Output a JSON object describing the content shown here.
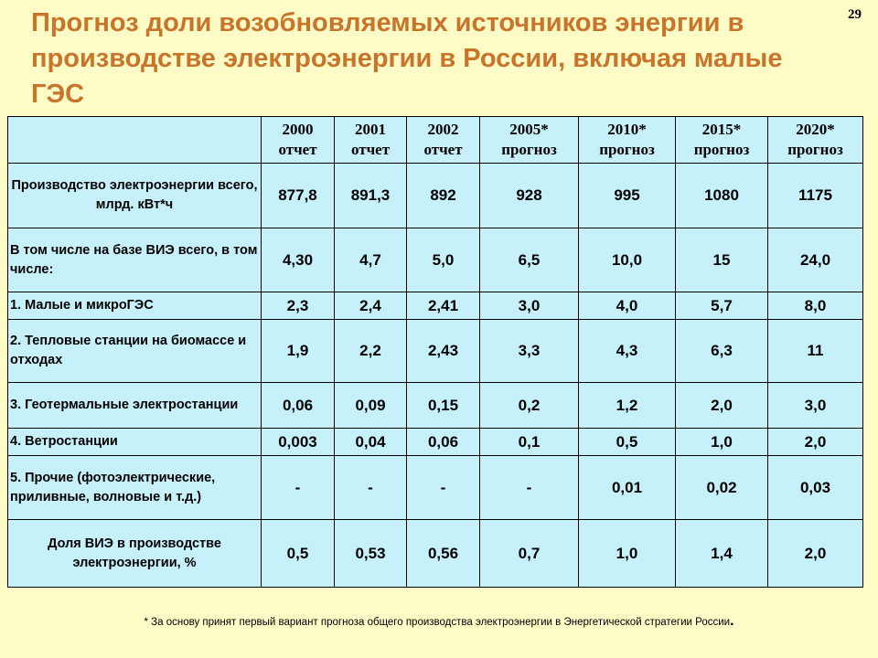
{
  "slide": {
    "number": "29",
    "title": "Прогноз доли возобновляемых источников энергии в производстве электроэнергии в России, включая малые ГЭС"
  },
  "table": {
    "columns": [
      {
        "year": "2000",
        "kind": "отчет"
      },
      {
        "year": "2001",
        "kind": "отчет"
      },
      {
        "year": "2002",
        "kind": "отчет"
      },
      {
        "year": "2005*",
        "kind": "прогноз"
      },
      {
        "year": "2010*",
        "kind": "прогноз"
      },
      {
        "year": "2015*",
        "kind": "прогноз"
      },
      {
        "year": "2020*",
        "kind": "прогноз"
      }
    ],
    "rows": [
      {
        "label": "Производство электроэнергии всего, млрд. кВт*ч",
        "values": [
          "877,8",
          "891,3",
          "892",
          "928",
          "995",
          "1080",
          "1175"
        ]
      },
      {
        "label": "В том числе на базе ВИЭ всего, в том числе:",
        "values": [
          "4,30",
          "4,7",
          "5,0",
          "6,5",
          "10,0",
          "15",
          "24,0"
        ]
      },
      {
        "label": "1. Малые и микроГЭС",
        "values": [
          "2,3",
          "2,4",
          "2,41",
          "3,0",
          "4,0",
          "5,7",
          "8,0"
        ]
      },
      {
        "label": "2. Тепловые станции на биомассе и отходах",
        "values": [
          "1,9",
          "2,2",
          "2,43",
          "3,3",
          "4,3",
          "6,3",
          "11"
        ]
      },
      {
        "label": "3. Геотермальные электростанции",
        "values": [
          "0,06",
          "0,09",
          "0,15",
          "0,2",
          "1,2",
          "2,0",
          "3,0"
        ]
      },
      {
        "label": "4. Ветростанции",
        "values": [
          "0,003",
          "0,04",
          "0,06",
          "0,1",
          "0,5",
          "1,0",
          "2,0"
        ]
      },
      {
        "label": "5. Прочие (фотоэлектрические, приливные, волновые и т.д.)",
        "values": [
          "-",
          "-",
          "-",
          "-",
          "0,01",
          "0,02",
          "0,03"
        ]
      },
      {
        "label": "Доля ВИЭ в производстве электроэнергии, %",
        "values": [
          "0,5",
          "0,53",
          "0,56",
          "0,7",
          "1,0",
          "1,4",
          "2,0"
        ]
      }
    ]
  },
  "footnote": {
    "text": "* За основу принят первый вариант прогноза общего производства электроэнергии в Энергетической стратегии России",
    "end_mark": "."
  },
  "colors": {
    "background": "#fdfbc6",
    "title": "#c8742a",
    "table_fill": "#c6f1fa",
    "border": "#000000"
  }
}
